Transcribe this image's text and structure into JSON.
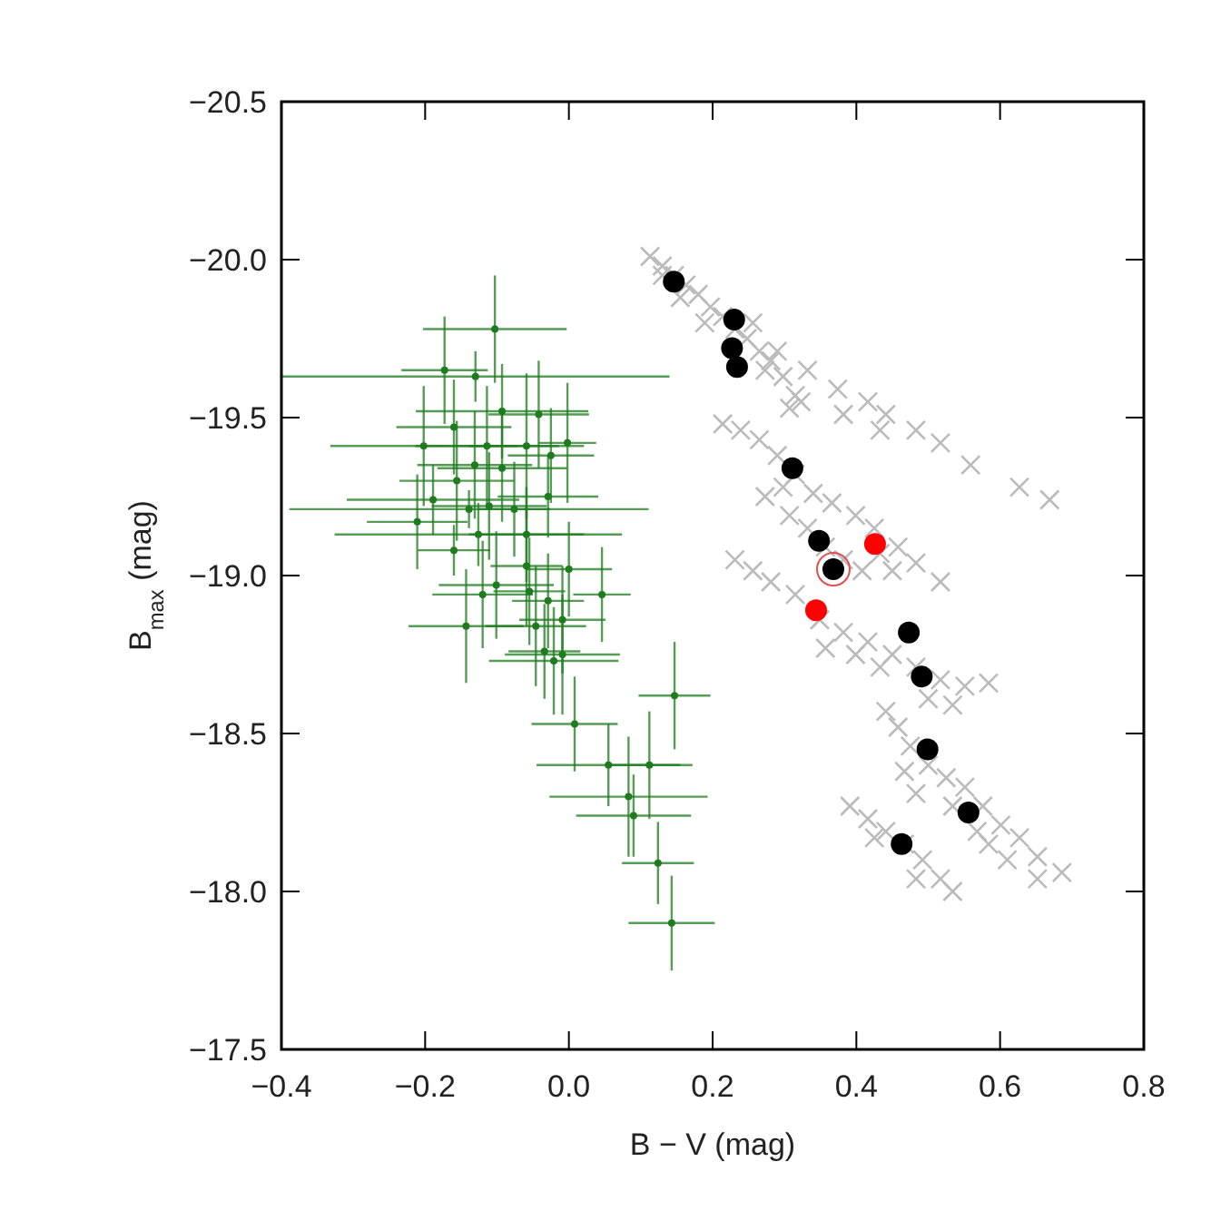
{
  "chart_data": {
    "type": "scatter",
    "xlabel": "B − V (mag)",
    "ylabel": "B$_{max}$ (mag)",
    "xlim": [
      -0.4,
      0.8
    ],
    "ylim": [
      -17.5,
      -20.5
    ],
    "xticks": [
      {
        "value": -0.4,
        "label": "−0.4"
      },
      {
        "value": -0.2,
        "label": "−0.2"
      },
      {
        "value": 0,
        "label": "0.0"
      },
      {
        "value": 0.2,
        "label": "0.2"
      },
      {
        "value": 0.4,
        "label": "0.4"
      },
      {
        "value": 0.6,
        "label": "0.6"
      },
      {
        "value": 0.8,
        "label": "0.8"
      }
    ],
    "yticks": [
      {
        "value": -20.5,
        "label": "−20.5"
      },
      {
        "value": -20,
        "label": "−20.0"
      },
      {
        "value": -19.5,
        "label": "−19.5"
      },
      {
        "value": -19,
        "label": "−19.0"
      },
      {
        "value": -18.5,
        "label": "−18.5"
      },
      {
        "value": -18,
        "label": "−18.0"
      },
      {
        "value": -17.5,
        "label": "−17.5"
      }
    ],
    "grid": false,
    "series": [
      {
        "color": "#bbbbbb",
        "marker": "cross",
        "x": [
          0.113,
          0.13,
          0.147,
          0.163,
          0.18,
          0.197,
          0.214,
          0.231,
          0.248,
          0.265,
          0.281,
          0.298,
          0.315,
          0.307,
          0.273,
          0.189,
          0.155,
          0.13,
          0.256,
          0.29,
          0.332,
          0.374,
          0.416,
          0.441,
          0.483,
          0.517,
          0.559,
          0.627,
          0.669,
          0.382,
          0.433,
          0.323,
          0.214,
          0.239,
          0.265,
          0.29,
          0.315,
          0.34,
          0.366,
          0.399,
          0.425,
          0.458,
          0.483,
          0.517,
          0.273,
          0.307,
          0.332,
          0.357,
          0.382,
          0.408,
          0.45,
          0.298,
          0.433,
          0.231,
          0.256,
          0.281,
          0.315,
          0.349,
          0.382,
          0.416,
          0.45,
          0.483,
          0.517,
          0.551,
          0.584,
          0.357,
          0.399,
          0.433,
          0.5,
          0.534,
          0.441,
          0.458,
          0.475,
          0.5,
          0.525,
          0.551,
          0.576,
          0.601,
          0.627,
          0.652,
          0.686,
          0.467,
          0.483,
          0.534,
          0.568,
          0.61,
          0.584,
          0.652,
          0.391,
          0.416,
          0.441,
          0.467,
          0.492,
          0.517,
          0.534,
          0.425,
          0.483
        ],
        "values": [
          -20.01,
          -19.98,
          -19.95,
          -19.92,
          -19.89,
          -19.85,
          -19.82,
          -19.78,
          -19.75,
          -19.71,
          -19.68,
          -19.63,
          -19.57,
          -19.53,
          -19.65,
          -19.8,
          -19.88,
          -19.95,
          -19.8,
          -19.71,
          -19.65,
          -19.59,
          -19.55,
          -19.51,
          -19.46,
          -19.42,
          -19.35,
          -19.28,
          -19.24,
          -19.51,
          -19.46,
          -19.55,
          -19.48,
          -19.46,
          -19.43,
          -19.38,
          -19.32,
          -19.26,
          -19.23,
          -19.19,
          -19.15,
          -19.09,
          -19.04,
          -18.98,
          -19.25,
          -19.19,
          -19.15,
          -19.09,
          -19.05,
          -19.015,
          -19.015,
          -19.28,
          -19.07,
          -19.05,
          -19.015,
          -18.98,
          -18.94,
          -18.86,
          -18.82,
          -18.79,
          -18.75,
          -18.71,
          -18.67,
          -18.65,
          -18.66,
          -18.77,
          -18.75,
          -18.71,
          -18.61,
          -18.59,
          -18.57,
          -18.52,
          -18.46,
          -18.4,
          -18.36,
          -18.33,
          -18.27,
          -18.21,
          -18.17,
          -18.11,
          -18.06,
          -18.38,
          -18.31,
          -18.27,
          -18.19,
          -18.1,
          -18.15,
          -18.04,
          -18.27,
          -18.23,
          -18.19,
          -18.15,
          -18.1,
          -18.04,
          -18.0,
          -18.17,
          -18.04
        ]
      },
      {
        "color": "#1e7b1e",
        "marker": "circle",
        "x": [
          -0.103,
          -0.173,
          -0.13,
          -0.202,
          -0.189,
          -0.211,
          -0.16,
          -0.139,
          -0.093,
          -0.042,
          -0.002,
          -0.025,
          -0.029,
          -0.126,
          -0.059,
          -0.114,
          -0.156,
          -0.093,
          -0.059,
          -0.059,
          0.0,
          -0.055,
          -0.101,
          -0.12,
          0.046,
          -0.029,
          -0.143,
          -0.046,
          -0.009,
          -0.034,
          -0.021,
          -0.009,
          0.008,
          0.147,
          0.055,
          0.112,
          0.083,
          0.09,
          0.124,
          0.143,
          -0.16,
          -0.131,
          -0.111,
          -0.076
        ],
        "values": [
          -19.78,
          -19.65,
          -19.63,
          -19.41,
          -19.24,
          -19.17,
          -19.08,
          -19.21,
          -19.52,
          -19.51,
          -19.42,
          -19.38,
          -19.25,
          -19.13,
          -19.41,
          -19.41,
          -19.3,
          -19.34,
          -19.13,
          -19.03,
          -19.02,
          -18.95,
          -18.97,
          -18.94,
          -18.94,
          -18.92,
          -18.84,
          -18.84,
          -18.86,
          -18.76,
          -18.73,
          -18.75,
          -18.53,
          -18.62,
          -18.4,
          -18.4,
          -18.3,
          -18.24,
          -18.09,
          -17.9,
          -19.47,
          -19.35,
          -19.22,
          -19.21
        ],
        "xerrors": [
          0.1,
          0.06,
          0.27,
          0.13,
          0.12,
          0.07,
          0.05,
          0.25,
          0.12,
          0.07,
          0.04,
          0.06,
          0.07,
          0.2,
          0.08,
          0.1,
          0.08,
          0.09,
          0.08,
          0.05,
          0.06,
          0.05,
          0.08,
          0.07,
          0.04,
          0.05,
          0.08,
          0.07,
          0.06,
          0.05,
          0.09,
          0.08,
          0.06,
          0.05,
          0.1,
          0.06,
          0.11,
          0.08,
          0.05,
          0.06,
          0.08,
          0.08,
          0.08,
          0.05
        ],
        "errors": [
          0.17,
          0.17,
          0.08,
          0.19,
          0.11,
          0.15,
          0.08,
          0.06,
          0.15,
          0.17,
          0.19,
          0.15,
          0.13,
          0.1,
          0.23,
          0.19,
          0.19,
          0.17,
          0.15,
          0.19,
          0.15,
          0.17,
          0.17,
          0.17,
          0.15,
          0.15,
          0.18,
          0.19,
          0.17,
          0.15,
          0.17,
          0.19,
          0.15,
          0.17,
          0.13,
          0.17,
          0.19,
          0.13,
          0.13,
          0.15,
          0.15,
          0.17,
          0.17,
          0.15
        ]
      },
      {
        "color": "#000000",
        "marker": "circle",
        "x": [
          0.146,
          0.23,
          0.227,
          0.234,
          0.311,
          0.348,
          0.368,
          0.473,
          0.491,
          0.499,
          0.556,
          0.463
        ],
        "values": [
          -19.93,
          -19.81,
          -19.72,
          -19.66,
          -19.34,
          -19.11,
          -19.02,
          -18.82,
          -18.68,
          -18.45,
          -18.25,
          -18.15
        ]
      },
      {
        "color": "#ff0000",
        "marker": "circle",
        "x": [
          0.426,
          0.344
        ],
        "values": [
          -19.1,
          -18.89
        ]
      },
      {
        "type": "bubble",
        "color": "#e05050",
        "x": [
          0.368
        ],
        "values": [
          -19.02
        ],
        "sizes": [
          1
        ]
      }
    ]
  }
}
